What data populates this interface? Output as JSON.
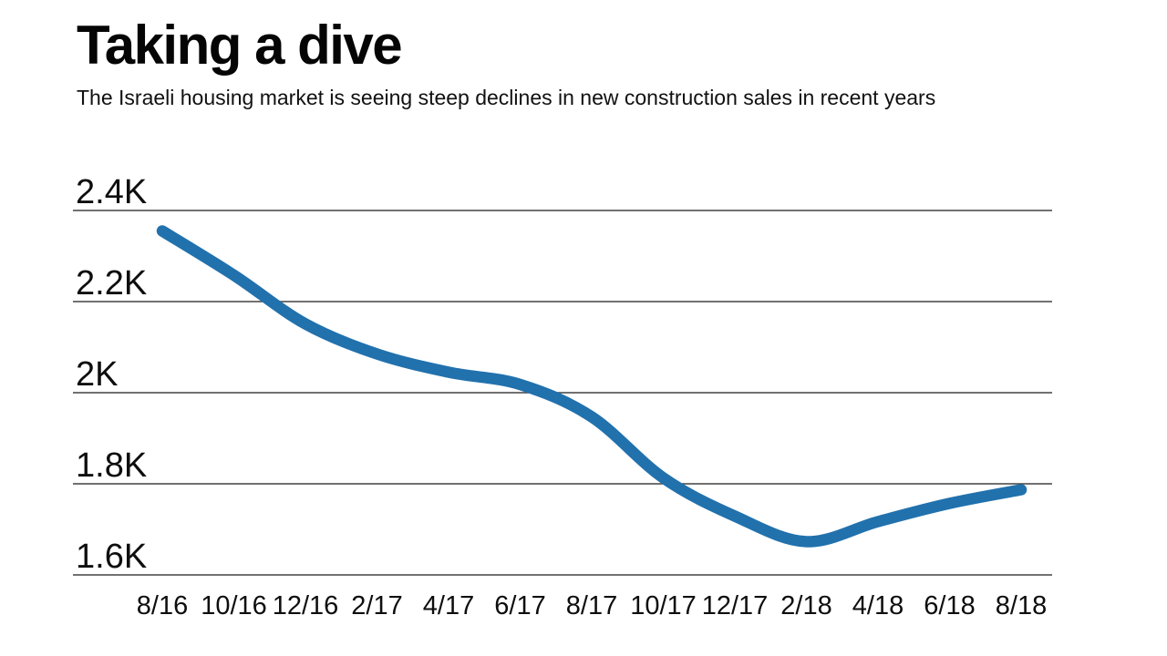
{
  "header": {
    "title": "Taking a dive",
    "subtitle": "The Israeli housing market is seeing steep declines in new construction sales in recent years"
  },
  "chart_data": {
    "type": "line",
    "title": "Taking a dive",
    "subtitle": "The Israeli housing market is seeing steep declines in new construction sales in recent years",
    "categories": [
      "8/16",
      "10/16",
      "12/16",
      "2/17",
      "4/17",
      "6/17",
      "8/17",
      "10/17",
      "12/17",
      "2/18",
      "4/18",
      "6/18",
      "8/18"
    ],
    "series": [
      {
        "name": "New construction sales",
        "values": [
          2355,
          2258,
          2151,
          2085,
          2045,
          2018,
          1947,
          1813,
          1729,
          1673,
          1717,
          1757,
          1787
        ]
      }
    ],
    "xlabel": "",
    "ylabel": "",
    "y_axis": {
      "min": 1600,
      "max": 2400,
      "tick_step": 200,
      "tick_labels_top_to_bottom": [
        "2.4K",
        "2.2K",
        "2K",
        "1.8K",
        "1.6K"
      ],
      "grid": true
    },
    "legend": "none",
    "smooth": true,
    "colors": {
      "line": "#2171ad",
      "grid": "#424242",
      "text": "#0e0e0e",
      "background": "#ffffff"
    }
  }
}
